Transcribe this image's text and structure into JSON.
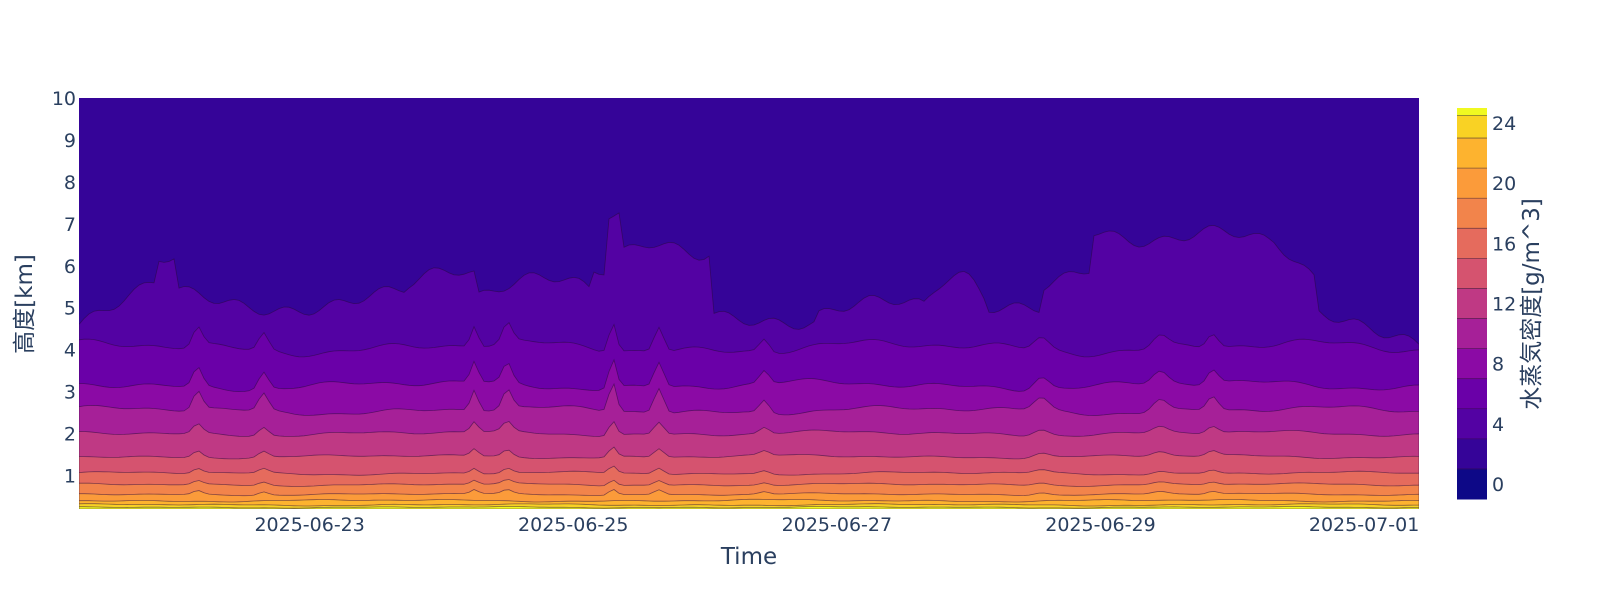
{
  "chart_data": {
    "type": "contour",
    "title": "",
    "xlabel": "Time",
    "ylabel": "高度[km]",
    "x_ticks": [
      "2025-06-23",
      "2025-06-25",
      "2025-06-27",
      "2025-06-29",
      "2025-07-01"
    ],
    "x_range": [
      "2025-06-21 06:00",
      "2025-07-01 10:00"
    ],
    "y_ticks": [
      "1",
      "2",
      "3",
      "4",
      "5",
      "6",
      "7",
      "8",
      "9",
      "10"
    ],
    "ylim": [
      0.2,
      10
    ],
    "colorbar": {
      "title": "水蒸気密度[g/m^3]",
      "ticks": [
        "0",
        "4",
        "8",
        "12",
        "16",
        "20",
        "24"
      ],
      "range": [
        -1,
        25
      ],
      "contour_step": 2,
      "colorscale": [
        "#0d0887",
        "#46039f",
        "#7201a8",
        "#9c179e",
        "#bd3786",
        "#d8576b",
        "#ed7953",
        "#fb9f3a",
        "#fdca26",
        "#f0f921"
      ]
    },
    "contour_levels_km": [
      {
        "level": 2,
        "typical_height": 5.2
      },
      {
        "level": 4,
        "typical_height": 4.0
      },
      {
        "level": 6,
        "typical_height": 3.2
      },
      {
        "level": 8,
        "typical_height": 2.5
      },
      {
        "level": 10,
        "typical_height": 2.0
      },
      {
        "level": 12,
        "typical_height": 1.45
      },
      {
        "level": 14,
        "typical_height": 1.05
      },
      {
        "level": 16,
        "typical_height": 0.75
      },
      {
        "level": 18,
        "typical_height": 0.5
      },
      {
        "level": 20,
        "typical_height": 0.35
      },
      {
        "level": 22,
        "typical_height": 0.25
      }
    ],
    "grid": false
  }
}
